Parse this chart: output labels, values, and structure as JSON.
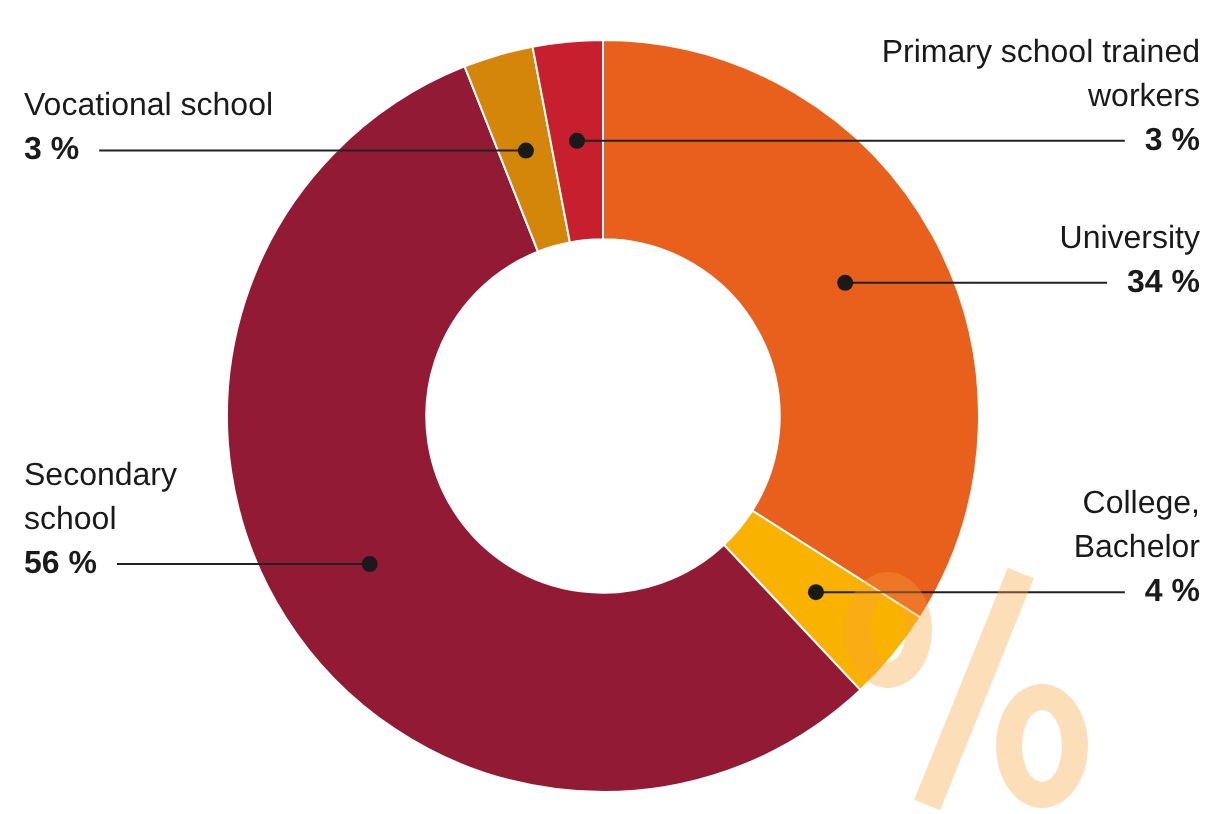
{
  "chart_data": {
    "type": "donut",
    "categories": [
      "University",
      "College, Bachelor",
      "Secondary school",
      "Vocational school",
      "Primary school trained workers"
    ],
    "values": [
      34,
      4,
      56,
      3,
      3
    ],
    "colors": [
      "#e8601c",
      "#f9b200",
      "#921a34",
      "#d4860b",
      "#c71f2d"
    ],
    "value_labels": [
      "34 %",
      "4 %",
      "56 %",
      "3 %",
      "3 %"
    ],
    "legend": false
  }
}
